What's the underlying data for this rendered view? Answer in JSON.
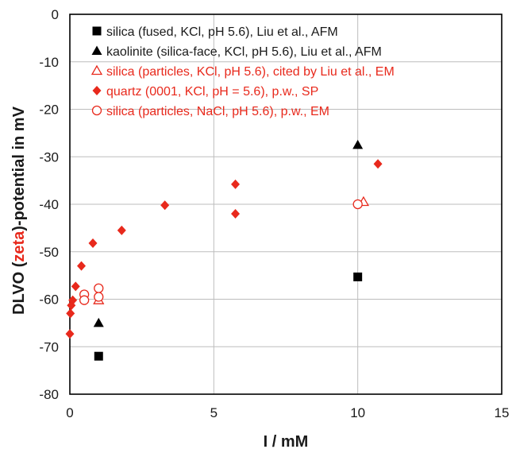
{
  "chart_data": {
    "type": "scatter",
    "xlabel": "I / mM",
    "ylabel_parts": [
      {
        "text": "DLVO (",
        "color": "#1a1a1a"
      },
      {
        "text": "zeta",
        "color": "#e8291c"
      },
      {
        "text": ")-potential in mV",
        "color": "#1a1a1a"
      }
    ],
    "xlim": [
      0,
      15
    ],
    "ylim": [
      -80,
      0
    ],
    "x_ticks": [
      0,
      5,
      10,
      15
    ],
    "y_ticks": [
      0,
      -10,
      -20,
      -30,
      -40,
      -50,
      -60,
      -70,
      -80
    ],
    "grid": true,
    "legend_position": "top-left",
    "series": [
      {
        "name": "silica (fused, KCl, pH 5.6), Liu et al., AFM",
        "marker": "square-filled",
        "color": "#000000",
        "points": [
          [
            1,
            -72
          ],
          [
            10,
            -55.3
          ]
        ]
      },
      {
        "name": "kaolinite (silica-face, KCl, pH 5.6), Liu et al., AFM",
        "marker": "triangle-filled",
        "color": "#000000",
        "points": [
          [
            1,
            -65
          ],
          [
            10,
            -27.5
          ]
        ]
      },
      {
        "name": "silica (particles, KCl, pH 5.6), cited by Liu et al., EM",
        "marker": "triangle-open",
        "color": "#e8291c",
        "points": [
          [
            1,
            -60.2
          ],
          [
            10.2,
            -39.5
          ]
        ]
      },
      {
        "name": "quartz (0001, KCl, pH = 5.6), p.w., SP",
        "marker": "diamond-filled",
        "color": "#e8291c",
        "points": [
          [
            0,
            -67.3
          ],
          [
            0.02,
            -63
          ],
          [
            0.05,
            -61.3
          ],
          [
            0.1,
            -60.2
          ],
          [
            0.2,
            -57.3
          ],
          [
            0.4,
            -53
          ],
          [
            0.8,
            -48.2
          ],
          [
            1.8,
            -45.5
          ],
          [
            3.3,
            -40.2
          ],
          [
            5.75,
            -35.8
          ],
          [
            5.75,
            -42
          ],
          [
            10.7,
            -31.5
          ]
        ]
      },
      {
        "name": "silica (particles, NaCl, pH 5.6), p.w., EM",
        "marker": "circle-open",
        "color": "#e8291c",
        "points": [
          [
            0.5,
            -59
          ],
          [
            0.5,
            -60.2
          ],
          [
            1,
            -57.7
          ],
          [
            1,
            -59.5
          ],
          [
            10,
            -40
          ]
        ]
      }
    ]
  }
}
